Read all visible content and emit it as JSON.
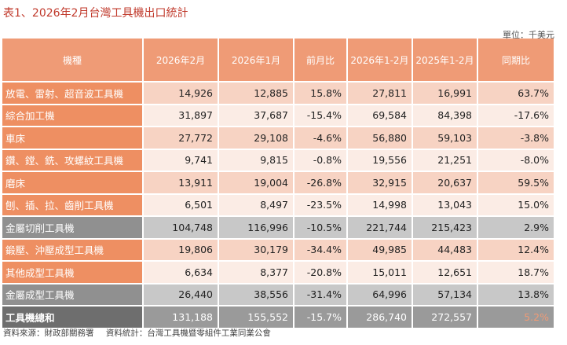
{
  "title": "表1、2026年2月台灣工具機出口統計",
  "unit": "單位：千美元",
  "headers": [
    "機種",
    "2026年2月",
    "2026年1月",
    "前月比",
    "2026年1-2月",
    "2025年1-2月",
    "同期比"
  ],
  "rows": [
    {
      "cells": [
        "放電、雷射、超音波工具機",
        "14,926",
        "12,885",
        "15.8%",
        "27,811",
        "16,991",
        "63.7%"
      ]
    },
    {
      "cells": [
        "綜合加工機",
        "31,897",
        "37,687",
        "-15.4%",
        "69,584",
        "84,398",
        "-17.6%"
      ]
    },
    {
      "cells": [
        "車床",
        "27,772",
        "29,108",
        "-4.6%",
        "56,880",
        "59,103",
        "-3.8%"
      ]
    },
    {
      "cells": [
        "鑽、鏜、銑、攻螺紋工具機",
        "9,741",
        "9,815",
        "-0.8%",
        "19,556",
        "21,251",
        "-8.0%"
      ]
    },
    {
      "cells": [
        "磨床",
        "13,911",
        "19,004",
        "-26.8%",
        "32,915",
        "20,637",
        "59.5%"
      ]
    },
    {
      "cells": [
        "刨、插、拉、齒削工具機",
        "6,501",
        "8,497",
        "-23.5%",
        "14,998",
        "13,043",
        "15.0%"
      ]
    },
    {
      "cells": [
        "金屬切削工具機",
        "104,748",
        "116,996",
        "-10.5%",
        "221,744",
        "215,423",
        "2.9%"
      ]
    },
    {
      "cells": [
        "鍛壓、沖壓成型工具機",
        "19,806",
        "30,179",
        "-34.4%",
        "49,985",
        "44,483",
        "12.4%"
      ]
    },
    {
      "cells": [
        "其他成型工具機",
        "6,634",
        "8,377",
        "-20.8%",
        "15,011",
        "12,651",
        "18.7%"
      ]
    },
    {
      "cells": [
        "金屬成型工具機",
        "26,440",
        "38,556",
        "-31.4%",
        "64,996",
        "57,134",
        "13.8%"
      ]
    },
    {
      "cells": [
        "工具機總和",
        "131,188",
        "155,552",
        "-15.7%",
        "286,740",
        "272,557",
        "5.2%"
      ]
    }
  ],
  "footer": {
    "source": "資料來源：財政部關務署",
    "compiled": "資料統計：台灣工具機暨零組件工業同業公會"
  }
}
